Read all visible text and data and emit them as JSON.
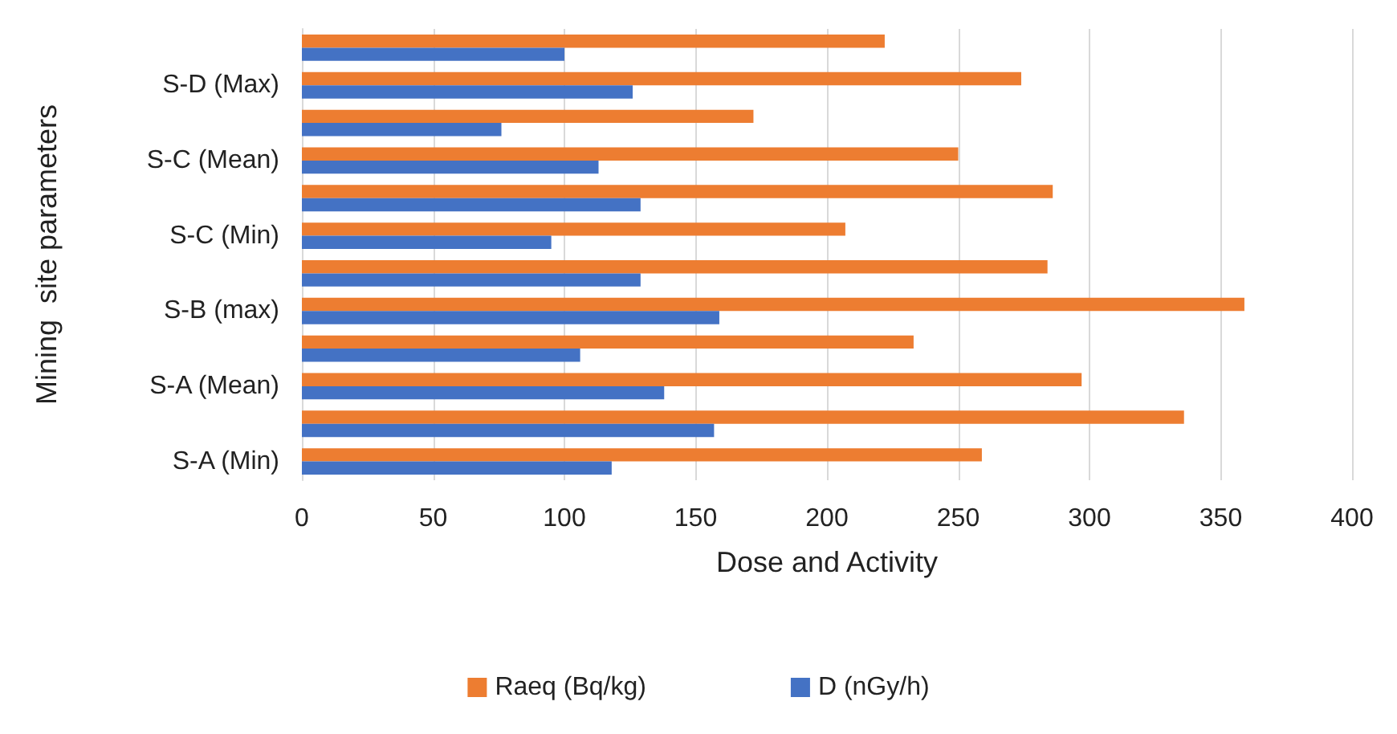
{
  "chart_data": {
    "type": "bar",
    "orientation": "horizontal",
    "xlabel": "Dose and Activity",
    "ylabel": "Mining  site parameters",
    "categories": [
      null,
      "S-D (Max)",
      null,
      "S-C (Mean)",
      null,
      "S-C (Min)",
      null,
      "S-B (max)",
      null,
      "S-A (Mean)",
      null,
      "S-A (Min)"
    ],
    "series": [
      {
        "name": "Raeq (Bq/kg)",
        "color": "#ed7d31",
        "values": [
          222,
          274,
          172,
          250,
          286,
          207,
          284,
          359,
          233,
          297,
          336,
          259
        ]
      },
      {
        "name": "D (nGy/h)",
        "color": "#4472c4",
        "values": [
          100,
          126,
          76,
          113,
          129,
          95,
          129,
          159,
          106,
          138,
          157,
          118
        ]
      }
    ],
    "xlim": [
      0,
      400
    ],
    "xticks": [
      0,
      50,
      100,
      150,
      200,
      250,
      300,
      350,
      400
    ],
    "grid": "x",
    "legend": "bottom"
  }
}
